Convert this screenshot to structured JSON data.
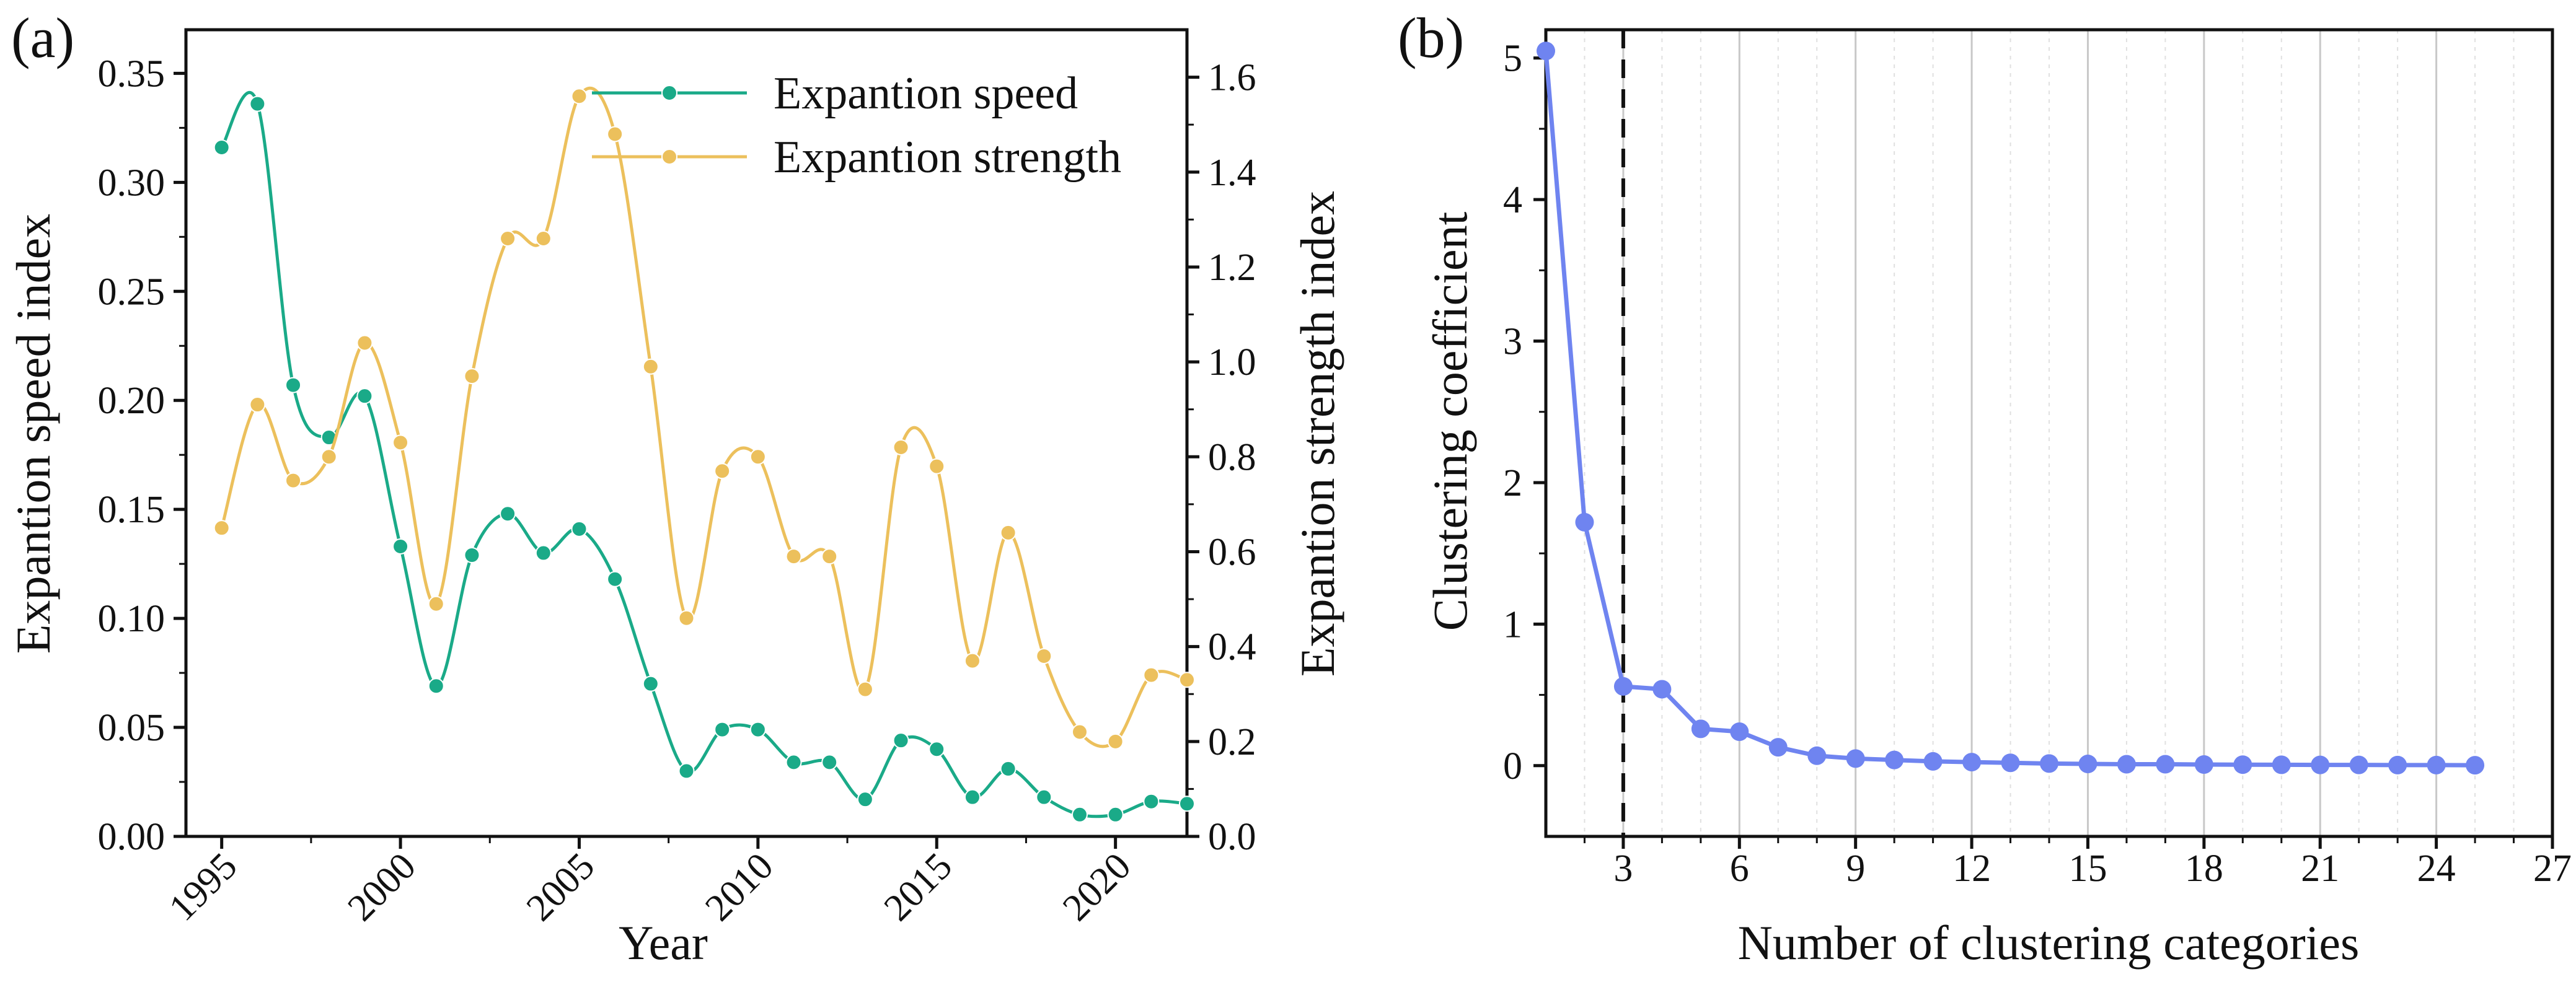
{
  "panel_a": {
    "label": "(a)",
    "chart_data": {
      "type": "line",
      "title": "",
      "xlabel": "Year",
      "ylabel_left": "Expantion speed index",
      "ylabel_right": "Expantion strength index",
      "x": [
        1995,
        1996,
        1997,
        1998,
        1999,
        2000,
        2001,
        2002,
        2003,
        2004,
        2005,
        2006,
        2007,
        2008,
        2009,
        2010,
        2011,
        2012,
        2013,
        2014,
        2015,
        2016,
        2017,
        2018,
        2019,
        2020,
        2021,
        2022
      ],
      "xlim": [
        1994,
        2022
      ],
      "xticks": [
        1995,
        2000,
        2005,
        2010,
        2015,
        2020
      ],
      "xtick_labels": [
        "1995",
        "2000",
        "2005",
        "2010",
        "2015",
        "2020"
      ],
      "ylim_left": [
        0,
        0.37
      ],
      "yticks_left": [
        0.0,
        0.05,
        0.1,
        0.15,
        0.2,
        0.25,
        0.3,
        0.35
      ],
      "ytick_labels_left": [
        "0.00",
        "0.05",
        "0.10",
        "0.15",
        "0.20",
        "0.25",
        "0.30",
        "0.35"
      ],
      "ylim_right": [
        0,
        1.7
      ],
      "yticks_right": [
        0.0,
        0.2,
        0.4,
        0.6,
        0.8,
        1.0,
        1.2,
        1.4,
        1.6
      ],
      "ytick_labels_right": [
        "0.0",
        "0.2",
        "0.4",
        "0.6",
        "0.8",
        "1.0",
        "1.2",
        "1.4",
        "1.6"
      ],
      "legend_position": "top-right",
      "series": [
        {
          "name": "Expantion speed",
          "axis": "left",
          "color": "#1aaa88",
          "values": [
            0.316,
            0.336,
            0.207,
            0.183,
            0.202,
            0.133,
            0.069,
            0.129,
            0.148,
            0.13,
            0.141,
            0.118,
            0.07,
            0.03,
            0.049,
            0.049,
            0.034,
            0.034,
            0.017,
            0.044,
            0.04,
            0.018,
            0.031,
            0.018,
            0.01,
            0.01,
            0.016,
            0.015
          ]
        },
        {
          "name": "Expantion strength",
          "axis": "right",
          "color": "#ecc05c",
          "values": [
            0.65,
            0.91,
            0.75,
            0.8,
            1.04,
            0.83,
            0.49,
            0.97,
            1.26,
            1.26,
            1.56,
            1.48,
            0.99,
            0.46,
            0.77,
            0.8,
            0.59,
            0.59,
            0.31,
            0.82,
            0.78,
            0.37,
            0.64,
            0.38,
            0.22,
            0.2,
            0.34,
            0.33
          ]
        }
      ]
    }
  },
  "panel_b": {
    "label": "(b)",
    "chart_data": {
      "type": "line",
      "title": "",
      "xlabel": "Number of clustering categories",
      "ylabel": "Clustering coefficient",
      "x": [
        1,
        2,
        3,
        4,
        5,
        6,
        7,
        8,
        9,
        10,
        11,
        12,
        13,
        14,
        15,
        16,
        17,
        18,
        19,
        20,
        21,
        22,
        23,
        24,
        25
      ],
      "xlim": [
        1,
        27
      ],
      "xticks": [
        3,
        6,
        9,
        12,
        15,
        18,
        21,
        24,
        27
      ],
      "xtick_labels": [
        "3",
        "6",
        "9",
        "12",
        "15",
        "18",
        "21",
        "24",
        "27"
      ],
      "ylim": [
        -0.5,
        5.2
      ],
      "yticks": [
        0,
        1,
        2,
        3,
        4,
        5
      ],
      "ytick_labels": [
        "0",
        "1",
        "2",
        "3",
        "4",
        "5"
      ],
      "reference_line_x": 3,
      "series": [
        {
          "name": "Clustering coefficient",
          "color": "#6f84f0",
          "values": [
            5.05,
            1.72,
            0.56,
            0.54,
            0.26,
            0.24,
            0.13,
            0.07,
            0.05,
            0.04,
            0.03,
            0.025,
            0.02,
            0.015,
            0.012,
            0.01,
            0.01,
            0.008,
            0.007,
            0.006,
            0.005,
            0.005,
            0.004,
            0.004,
            0.003
          ]
        }
      ]
    }
  }
}
